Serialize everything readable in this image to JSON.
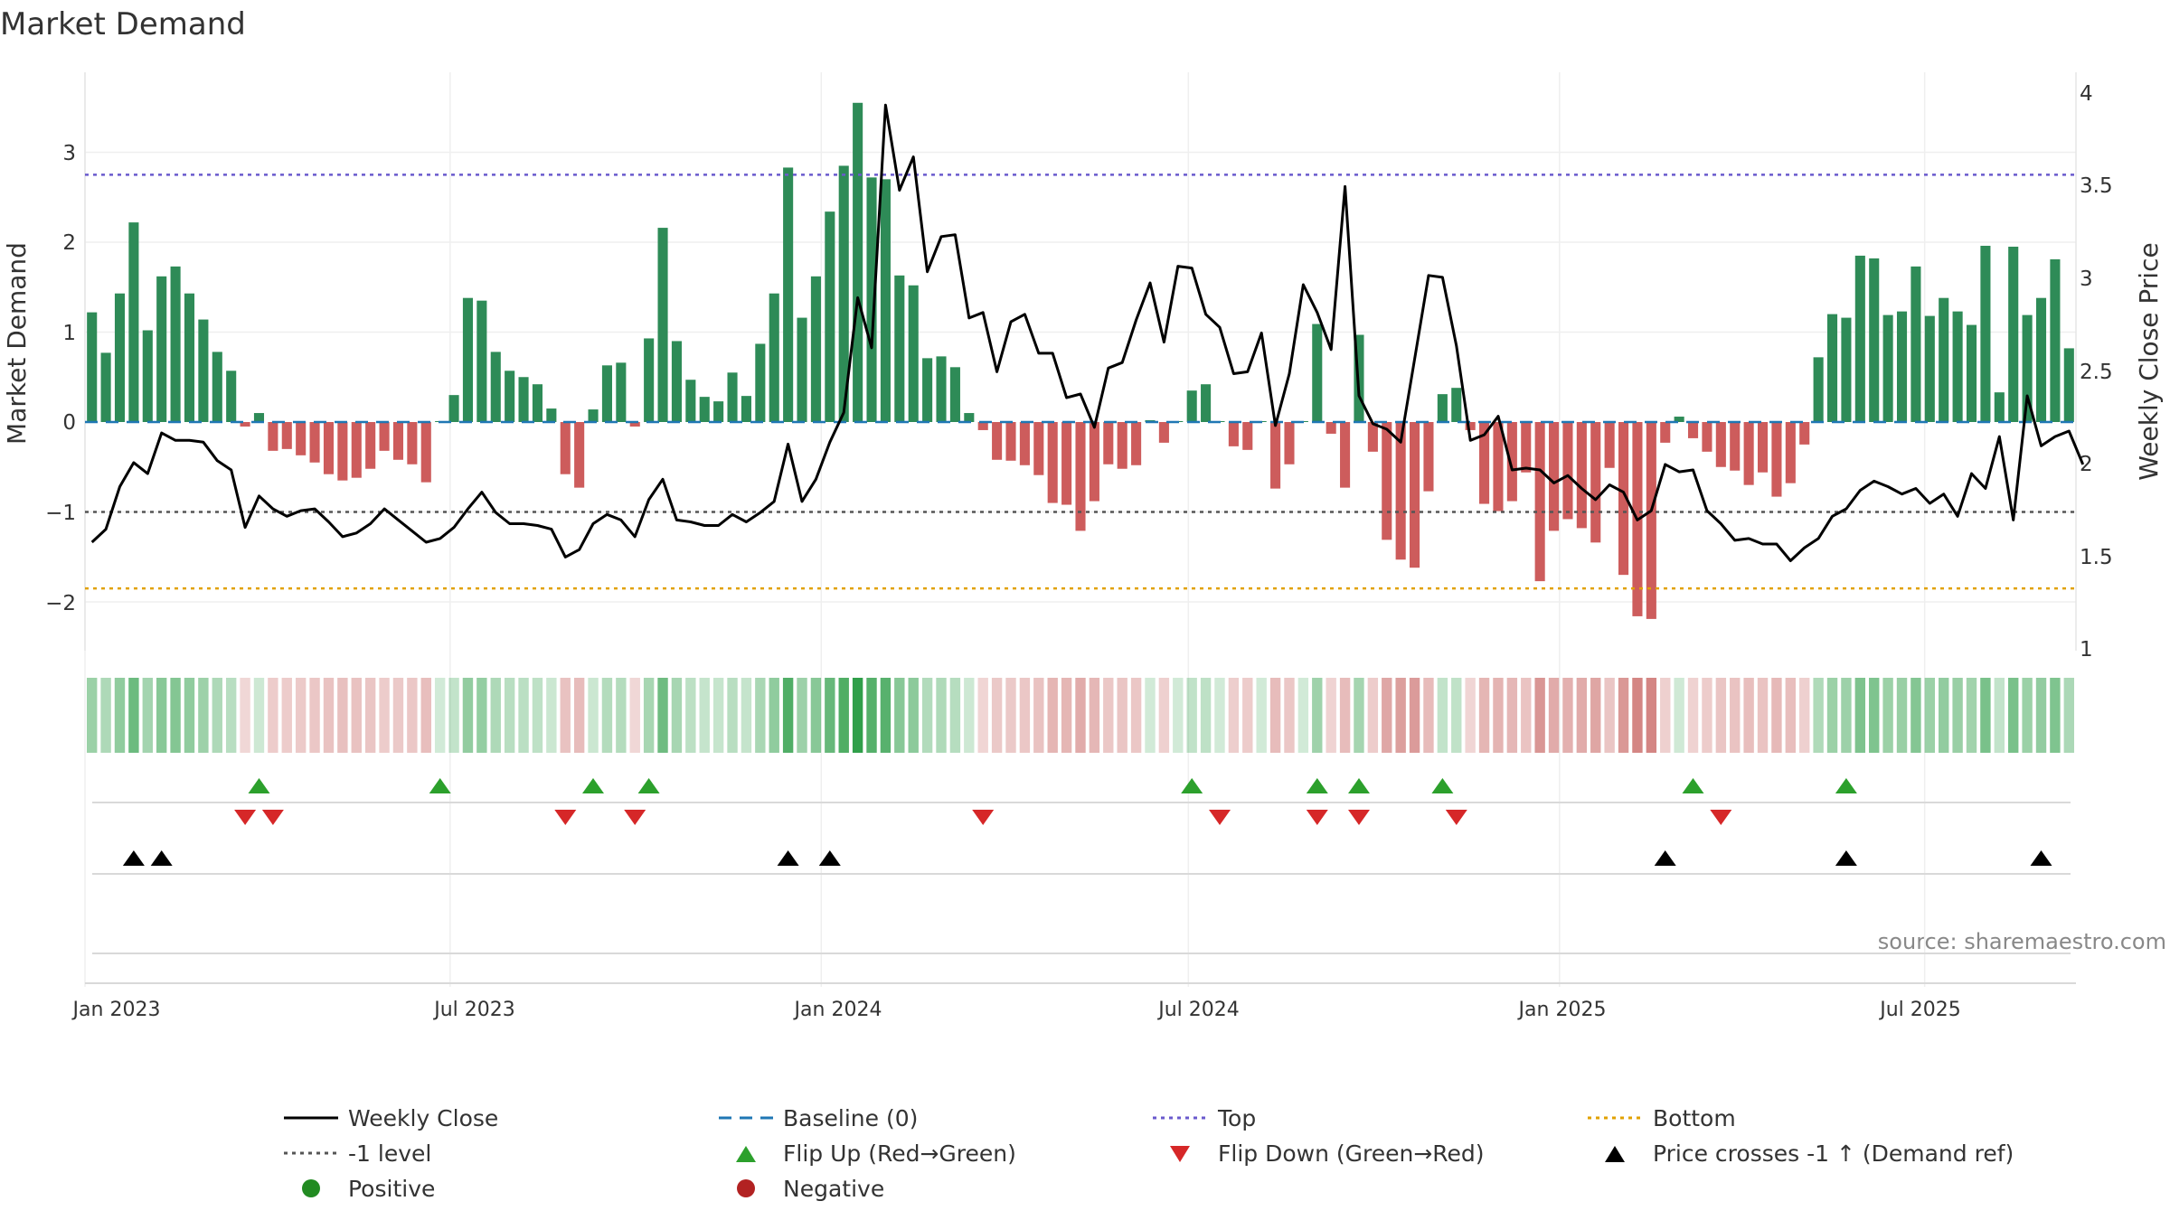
{
  "chart_data": {
    "type": "bar",
    "title": "Market Demand",
    "ylabel": "Market Demand",
    "y2label": "Weekly Close Price",
    "source": "source: sharemaestro.com",
    "ylim": [
      -2.5,
      3.7
    ],
    "y2lim": [
      1,
      4.1
    ],
    "yticks": [
      "3",
      "2",
      "1",
      "0",
      "−1",
      "−2"
    ],
    "y2ticks": [
      "4",
      "3.5",
      "3",
      "2.5",
      "2",
      "1.5",
      "1"
    ],
    "xticks": [
      "Jan 2023",
      "Jul 2023",
      "Jan 2024",
      "Jul 2024",
      "Jan 2025",
      "Jul 2025"
    ],
    "start_date": "2023-01-01",
    "end_date": "2025-09-14",
    "reference_lines": {
      "baseline": 0,
      "top": 2.75,
      "minus_one": -1,
      "bottom": -1.85
    },
    "demand": [
      1.22,
      0.77,
      1.43,
      2.22,
      1.02,
      1.62,
      1.73,
      1.43,
      1.14,
      0.78,
      0.57,
      -0.05,
      0.1,
      -0.32,
      -0.3,
      -0.37,
      -0.45,
      -0.58,
      -0.65,
      -0.62,
      -0.52,
      -0.32,
      -0.42,
      -0.47,
      -0.67,
      0.01,
      0.3,
      1.38,
      1.35,
      0.78,
      0.57,
      0.5,
      0.42,
      0.15,
      -0.58,
      -0.73,
      0.14,
      0.63,
      0.66,
      -0.05,
      0.93,
      2.16,
      0.9,
      0.47,
      0.28,
      0.23,
      0.55,
      0.29,
      0.87,
      1.43,
      2.83,
      1.16,
      1.62,
      2.34,
      2.85,
      3.55,
      2.72,
      2.7,
      1.63,
      1.52,
      0.71,
      0.73,
      0.61,
      0.1,
      -0.09,
      -0.42,
      -0.43,
      -0.48,
      -0.59,
      -0.9,
      -0.92,
      -1.21,
      -0.88,
      -0.47,
      -0.52,
      -0.48,
      0.02,
      -0.23,
      0.01,
      0.35,
      0.42,
      0.01,
      -0.27,
      -0.31,
      0.01,
      -0.74,
      -0.47,
      0.01,
      1.09,
      -0.13,
      -0.73,
      0.97,
      -0.33,
      -1.31,
      -1.53,
      -1.62,
      -0.77,
      0.31,
      0.38,
      -0.09,
      -0.91,
      -0.99,
      -0.88,
      -0.56,
      -1.77,
      -1.21,
      -1.08,
      -1.18,
      -1.34,
      -0.51,
      -1.7,
      -2.16,
      -2.19,
      -0.23,
      0.06,
      -0.18,
      -0.33,
      -0.5,
      -0.54,
      -0.7,
      -0.56,
      -0.83,
      -0.68,
      -0.25,
      0.72,
      1.2,
      1.16,
      1.85,
      1.82,
      1.19,
      1.23,
      1.73,
      1.18,
      1.38,
      1.23,
      1.08,
      1.96,
      0.33,
      1.95,
      1.19,
      1.38,
      1.81,
      0.82
    ],
    "weekly_close": [
      1.6,
      1.67,
      1.9,
      2.03,
      1.97,
      2.19,
      2.15,
      2.15,
      2.14,
      2.04,
      1.99,
      1.68,
      1.85,
      1.78,
      1.74,
      1.77,
      1.78,
      1.71,
      1.63,
      1.65,
      1.7,
      1.78,
      1.72,
      1.66,
      1.6,
      1.62,
      1.68,
      1.78,
      1.87,
      1.76,
      1.7,
      1.7,
      1.69,
      1.67,
      1.52,
      1.56,
      1.7,
      1.75,
      1.72,
      1.63,
      1.83,
      1.94,
      1.72,
      1.71,
      1.69,
      1.69,
      1.75,
      1.71,
      1.76,
      1.82,
      2.13,
      1.82,
      1.94,
      2.14,
      2.3,
      2.92,
      2.65,
      3.96,
      3.5,
      3.68,
      3.06,
      3.25,
      3.26,
      2.81,
      2.84,
      2.52,
      2.79,
      2.83,
      2.62,
      2.62,
      2.38,
      2.4,
      2.22,
      2.54,
      2.57,
      2.8,
      3.0,
      2.68,
      3.09,
      3.08,
      2.83,
      2.76,
      2.51,
      2.52,
      2.73,
      2.23,
      2.51,
      2.99,
      2.84,
      2.64,
      3.52,
      2.39,
      2.24,
      2.21,
      2.14,
      2.59,
      3.04,
      3.03,
      2.66,
      2.15,
      2.18,
      2.28,
      1.99,
      2.0,
      1.99,
      1.92,
      1.96,
      1.89,
      1.83,
      1.91,
      1.87,
      1.72,
      1.77,
      2.02,
      1.98,
      1.99,
      1.77,
      1.7,
      1.61,
      1.62,
      1.59,
      1.59,
      1.5,
      1.57,
      1.62,
      1.74,
      1.78,
      1.88,
      1.93,
      1.9,
      1.86,
      1.89,
      1.81,
      1.86,
      1.74,
      1.97,
      1.89,
      2.17,
      1.72,
      2.39,
      2.12,
      2.17,
      2.2,
      2.02
    ],
    "flip_up_weeks": [
      12,
      25,
      36,
      40,
      79,
      88,
      91,
      97,
      115,
      126
    ],
    "flip_down_weeks": [
      11,
      13,
      34,
      39,
      64,
      81,
      88,
      91,
      98,
      117
    ],
    "price_cross_weeks": [
      3,
      5,
      50,
      53,
      113,
      126,
      140
    ],
    "legend": [
      {
        "label": "Weekly Close",
        "kind": "line",
        "color": "#000000"
      },
      {
        "label": "Baseline (0)",
        "kind": "dash",
        "color": "#1f77b4"
      },
      {
        "label": "Top",
        "kind": "dot",
        "color": "#6a5acd"
      },
      {
        "label": "Bottom",
        "kind": "dot",
        "color": "#e1a100"
      },
      {
        "label": "-1 level",
        "kind": "dot",
        "color": "#555555"
      },
      {
        "label": "Flip Up (Red→Green)",
        "kind": "tri-up",
        "color": "#2ca02c"
      },
      {
        "label": "Flip Down (Green→Red)",
        "kind": "tri-down",
        "color": "#d62728"
      },
      {
        "label": "Price crosses -1 ↑ (Demand ref)",
        "kind": "tri-up",
        "color": "#000000"
      },
      {
        "label": "Positive",
        "kind": "circle",
        "color": "#228b22"
      },
      {
        "label": "Negative",
        "kind": "circle",
        "color": "#b22222"
      }
    ]
  },
  "colors": {
    "positive_bar": "#2e8b57",
    "negative_bar": "#cd5c5c",
    "flip_up": "#2ca02c",
    "flip_down": "#d62728",
    "price_cross": "#000000"
  }
}
